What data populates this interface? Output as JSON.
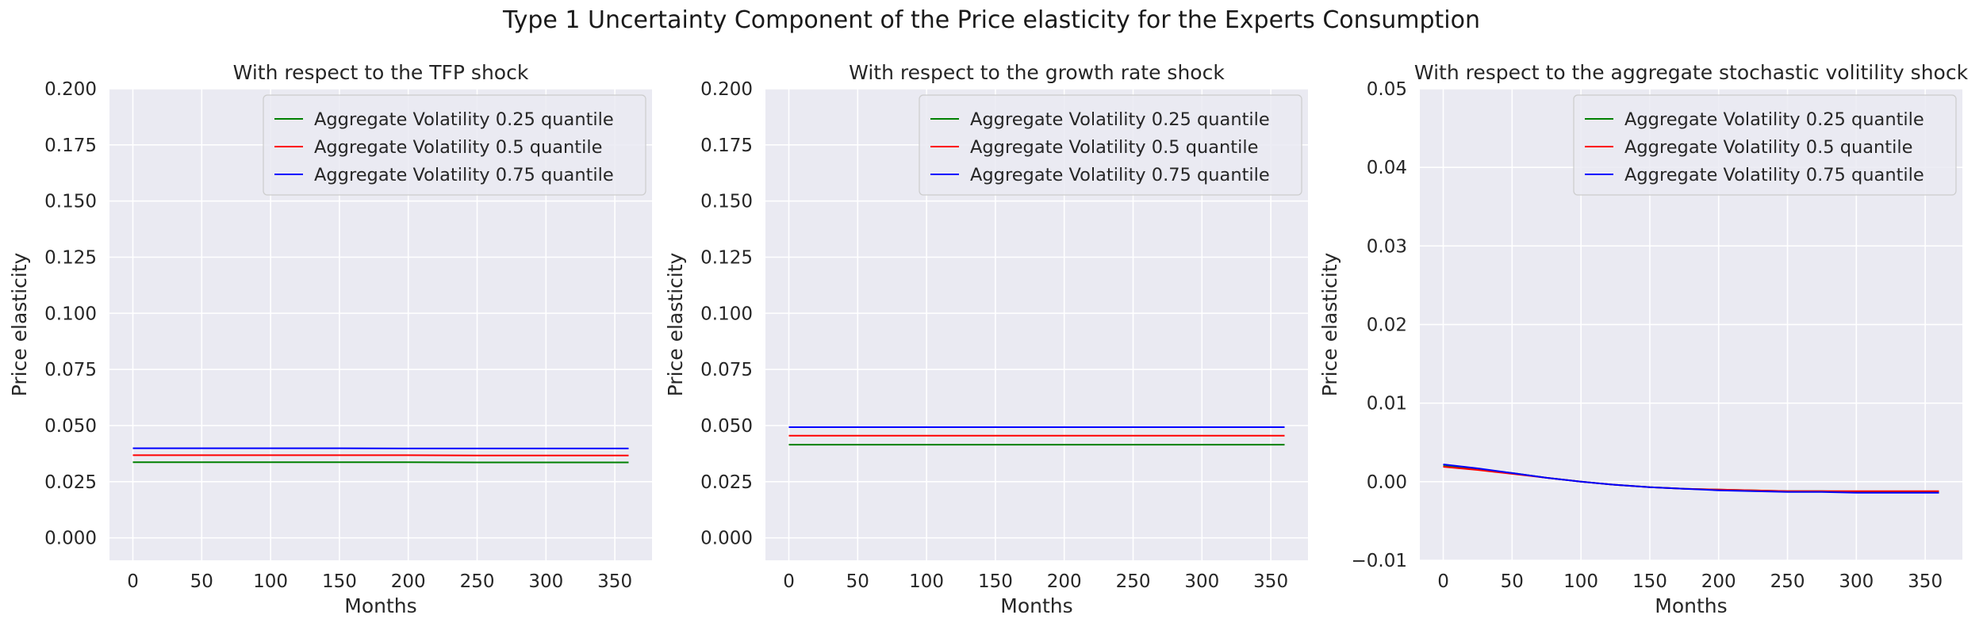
{
  "figure": {
    "title": "Type 1 Uncertainty Component of the Price elasticity for the Experts Consumption"
  },
  "colors": {
    "background": "#eaeaf2",
    "grid": "#ffffff",
    "series": [
      "#008000",
      "#ff0000",
      "#0000ff"
    ]
  },
  "chart_data": [
    {
      "type": "line",
      "title": "With respect to the TFP shock",
      "xlabel": "Months",
      "ylabel": "Price elasticity",
      "xlim": [
        -17,
        377
      ],
      "ylim": [
        -0.01,
        0.2
      ],
      "xticks": [
        0,
        50,
        100,
        150,
        200,
        250,
        300,
        350
      ],
      "yticks": [
        0.0,
        0.025,
        0.05,
        0.075,
        0.1,
        0.125,
        0.15,
        0.175,
        0.2
      ],
      "ytick_labels": [
        "0.000",
        "0.025",
        "0.050",
        "0.075",
        "0.100",
        "0.125",
        "0.150",
        "0.175",
        "0.200"
      ],
      "grid": true,
      "legend": "top-right",
      "x": [
        0,
        50,
        100,
        150,
        200,
        250,
        300,
        360
      ],
      "series": [
        {
          "name": "Aggregate Volatility 0.25 quantile",
          "values": [
            0.0337,
            0.0337,
            0.0337,
            0.0337,
            0.0337,
            0.0336,
            0.0336,
            0.0336
          ]
        },
        {
          "name": "Aggregate Volatility 0.5 quantile",
          "values": [
            0.0368,
            0.0368,
            0.0368,
            0.0368,
            0.0368,
            0.0367,
            0.0367,
            0.0367
          ]
        },
        {
          "name": "Aggregate Volatility 0.75 quantile",
          "values": [
            0.0399,
            0.0399,
            0.0399,
            0.0399,
            0.0398,
            0.0398,
            0.0398,
            0.0398
          ]
        }
      ]
    },
    {
      "type": "line",
      "title": "With respect to the growth rate shock",
      "xlabel": "Months",
      "ylabel": "Price elasticity",
      "xlim": [
        -17,
        377
      ],
      "ylim": [
        -0.01,
        0.2
      ],
      "xticks": [
        0,
        50,
        100,
        150,
        200,
        250,
        300,
        350
      ],
      "yticks": [
        0.0,
        0.025,
        0.05,
        0.075,
        0.1,
        0.125,
        0.15,
        0.175,
        0.2
      ],
      "ytick_labels": [
        "0.000",
        "0.025",
        "0.050",
        "0.075",
        "0.100",
        "0.125",
        "0.150",
        "0.175",
        "0.200"
      ],
      "grid": true,
      "legend": "top-right",
      "x": [
        0,
        50,
        100,
        150,
        200,
        250,
        300,
        360
      ],
      "series": [
        {
          "name": "Aggregate Volatility 0.25 quantile",
          "values": [
            0.0415,
            0.0415,
            0.0415,
            0.0415,
            0.0415,
            0.0415,
            0.0415,
            0.0415
          ]
        },
        {
          "name": "Aggregate Volatility 0.5 quantile",
          "values": [
            0.0455,
            0.0455,
            0.0455,
            0.0455,
            0.0455,
            0.0455,
            0.0455,
            0.0455
          ]
        },
        {
          "name": "Aggregate Volatility 0.75 quantile",
          "values": [
            0.0493,
            0.0493,
            0.0493,
            0.0493,
            0.0493,
            0.0493,
            0.0493,
            0.0493
          ]
        }
      ]
    },
    {
      "type": "line",
      "title": "With respect to the aggregate stochastic volitility shock",
      "xlabel": "Months",
      "ylabel": "Price elasticity",
      "xlim": [
        -17,
        377
      ],
      "ylim": [
        -0.01,
        0.05
      ],
      "xticks": [
        0,
        50,
        100,
        150,
        200,
        250,
        300,
        350
      ],
      "yticks": [
        -0.01,
        0.0,
        0.01,
        0.02,
        0.03,
        0.04,
        0.05
      ],
      "ytick_labels": [
        "−0.01",
        "0.00",
        "0.01",
        "0.02",
        "0.03",
        "0.04",
        "0.05"
      ],
      "grid": true,
      "legend": "top-right",
      "x": [
        0,
        25,
        50,
        75,
        100,
        125,
        150,
        175,
        200,
        225,
        250,
        275,
        300,
        325,
        360
      ],
      "series": [
        {
          "name": "Aggregate Volatility 0.25 quantile",
          "values": [
            0.002,
            0.0016,
            0.0011,
            0.0005,
            0.0,
            -0.0004,
            -0.0007,
            -0.0009,
            -0.001,
            -0.0011,
            -0.0012,
            -0.0012,
            -0.0013,
            -0.0013,
            -0.0013
          ]
        },
        {
          "name": "Aggregate Volatility 0.5 quantile",
          "values": [
            0.0019,
            0.0015,
            0.001,
            0.0005,
            0.0,
            -0.0004,
            -0.0007,
            -0.0009,
            -0.001,
            -0.0011,
            -0.0012,
            -0.0012,
            -0.0012,
            -0.0012,
            -0.0012
          ]
        },
        {
          "name": "Aggregate Volatility 0.75 quantile",
          "values": [
            0.0022,
            0.0017,
            0.0011,
            0.0005,
            0.0,
            -0.0004,
            -0.0007,
            -0.0009,
            -0.0011,
            -0.0012,
            -0.0013,
            -0.0013,
            -0.0014,
            -0.0014,
            -0.0014
          ]
        }
      ]
    }
  ]
}
